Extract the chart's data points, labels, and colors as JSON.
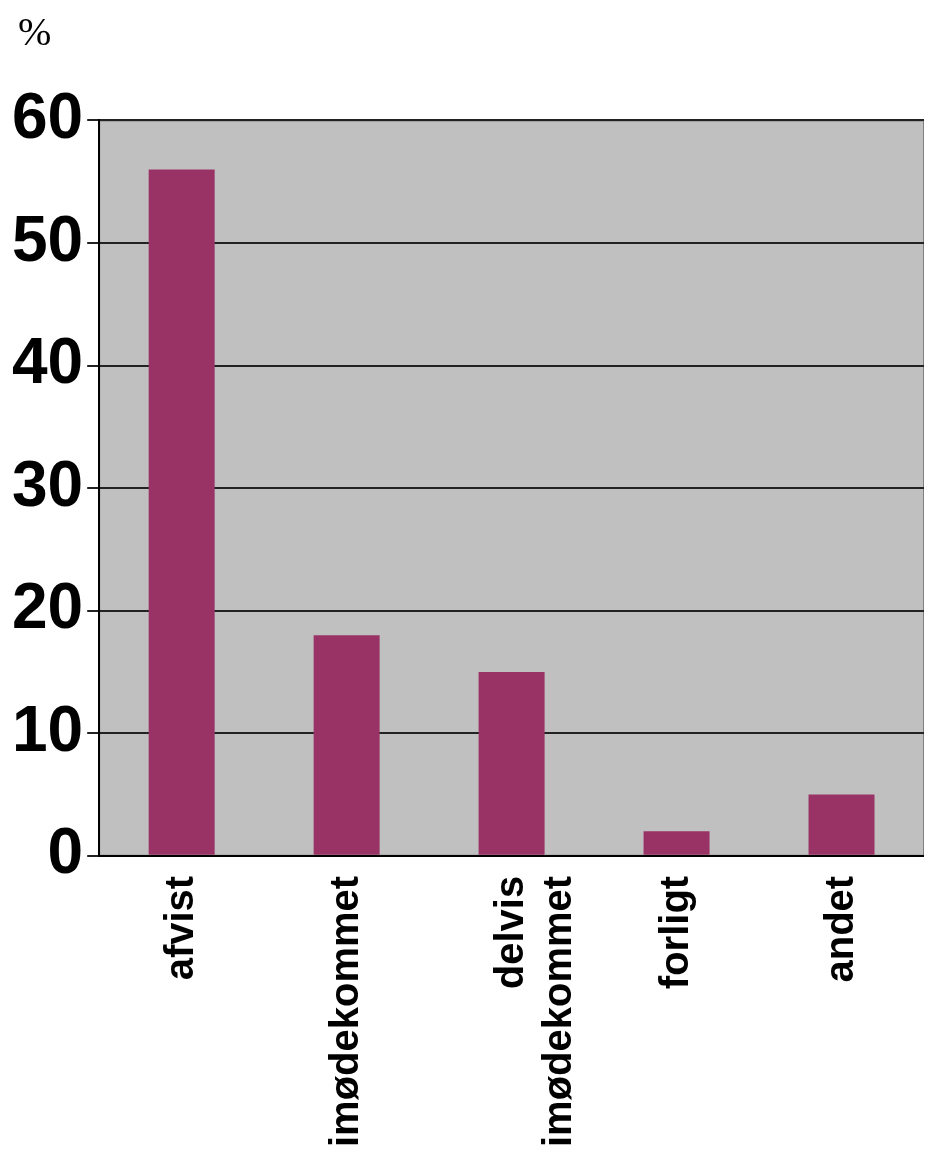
{
  "chart_data": {
    "type": "bar",
    "ylabel": "%",
    "categories": [
      "afvist",
      "imødekommet",
      "delvis imødekommet",
      "forligt",
      "andet"
    ],
    "values": [
      56,
      18,
      15,
      2,
      5
    ],
    "color": "#993366",
    "ylim": [
      0,
      60
    ],
    "yticks": [
      0,
      10,
      20,
      30,
      40,
      50,
      60
    ],
    "grid": "y",
    "legend": false
  }
}
